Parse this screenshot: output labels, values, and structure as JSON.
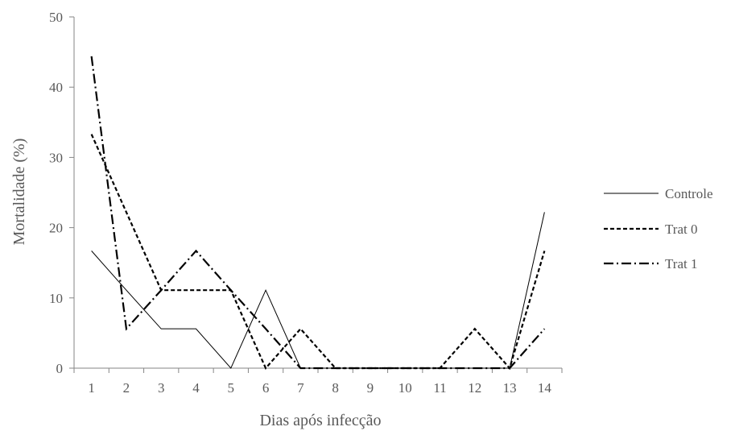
{
  "chart_data": {
    "type": "line",
    "title": "",
    "xlabel": "Dias após infecção",
    "ylabel": "Mortalidade (%)",
    "categories": [
      "1",
      "2",
      "3",
      "4",
      "5",
      "6",
      "7",
      "8",
      "9",
      "10",
      "11",
      "12",
      "13",
      "14"
    ],
    "ylim": [
      0,
      50
    ],
    "yticks": [
      0,
      10,
      20,
      30,
      40,
      50
    ],
    "grid": false,
    "legend_position": "right",
    "series": [
      {
        "name": "Controle",
        "style": "solid",
        "color": "#000000",
        "values": [
          16.7,
          11.1,
          5.6,
          5.6,
          0,
          11.1,
          0,
          0,
          0,
          0,
          0,
          0,
          0,
          22.2
        ]
      },
      {
        "name": "Trat 0",
        "style": "dashed",
        "color": "#000000",
        "values": [
          33.3,
          22.2,
          11.1,
          11.1,
          11.1,
          0,
          5.6,
          0,
          0,
          0,
          0,
          5.6,
          0,
          16.7
        ]
      },
      {
        "name": "Trat 1",
        "style": "dash-dot",
        "color": "#000000",
        "values": [
          44.4,
          5.6,
          11.1,
          16.7,
          11.1,
          5.6,
          0,
          0,
          0,
          0,
          0,
          0,
          0,
          5.6
        ]
      }
    ]
  }
}
